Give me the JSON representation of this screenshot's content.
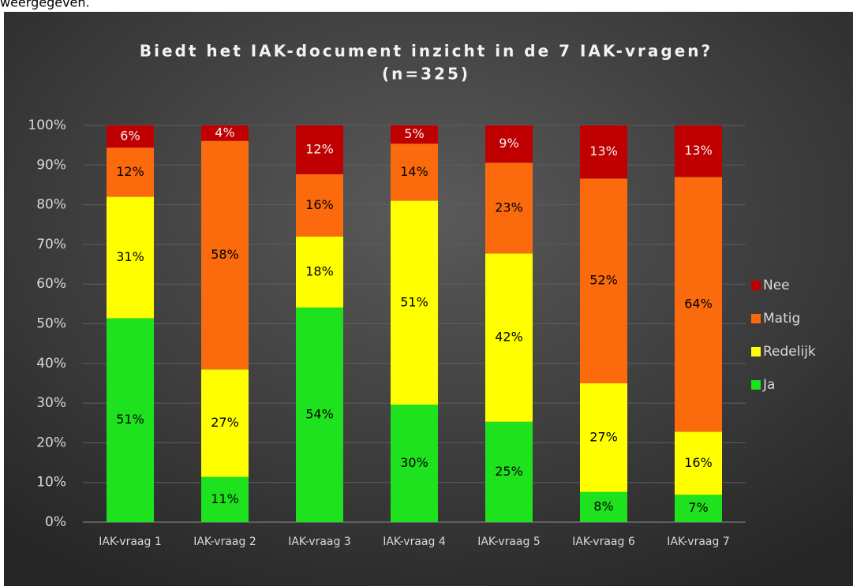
{
  "page_text": "weergegeven.",
  "chart_data": {
    "type": "stacked_bar",
    "title": "Biedt het IAK-document inzicht in de 7 IAK-vragen?",
    "subtitle": "(n=325)",
    "categories": [
      "IAK-vraag 1",
      "IAK-vraag 2",
      "IAK-vraag 3",
      "IAK-vraag 4",
      "IAK-vraag 5",
      "IAK-vraag 6",
      "IAK-vraag 7"
    ],
    "series": [
      {
        "name": "Ja",
        "color": "#1ee21e",
        "values": [
          51.4,
          11.4,
          54.1,
          29.6,
          25.3,
          7.6,
          6.9
        ],
        "value_labels": [
          "51%",
          "11%",
          "54%",
          "30%",
          "25%",
          "8%",
          "7%"
        ]
      },
      {
        "name": "Redelijk",
        "color": "#ffff00",
        "values": [
          30.6,
          27.1,
          17.9,
          51.4,
          42.4,
          27.4,
          15.9
        ],
        "value_labels": [
          "31%",
          "27%",
          "18%",
          "51%",
          "42%",
          "27%",
          "16%"
        ]
      },
      {
        "name": "Matig",
        "color": "#fb6a0c",
        "values": [
          12.4,
          57.6,
          15.7,
          14.4,
          22.9,
          51.6,
          64.2
        ],
        "value_labels": [
          "12%",
          "58%",
          "16%",
          "14%",
          "23%",
          "52%",
          "64%"
        ]
      },
      {
        "name": "Nee",
        "color": "#c00000",
        "values": [
          5.6,
          3.9,
          12.3,
          4.6,
          9.4,
          13.4,
          13.0
        ],
        "value_labels": [
          "6%",
          "4%",
          "12%",
          "5%",
          "9%",
          "13%",
          "13%"
        ]
      }
    ],
    "ylim": [
      0,
      100
    ],
    "yticks": [
      {
        "value": 0,
        "label": "0%"
      },
      {
        "value": 10,
        "label": "10%"
      },
      {
        "value": 20,
        "label": "20%"
      },
      {
        "value": 30,
        "label": "30%"
      },
      {
        "value": 40,
        "label": "40%"
      },
      {
        "value": 50,
        "label": "50%"
      },
      {
        "value": 60,
        "label": "60%"
      },
      {
        "value": 70,
        "label": "70%"
      },
      {
        "value": 80,
        "label": "80%"
      },
      {
        "value": 90,
        "label": "90%"
      },
      {
        "value": 100,
        "label": "100%"
      }
    ],
    "grid": true,
    "legend": "right"
  }
}
